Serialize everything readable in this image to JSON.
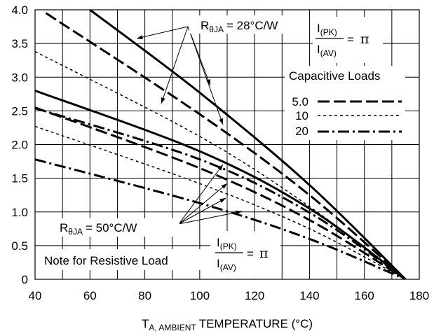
{
  "chart_data": {
    "type": "line",
    "title": "",
    "xlabel": {
      "main": "T",
      "subscript": "A, AMBIENT",
      "rest": "TEMPERATURE (°C)"
    },
    "ylabel": "",
    "xlim": [
      40,
      180
    ],
    "ylim": [
      0,
      4.0
    ],
    "x_ticks": [
      "40",
      "60",
      "80",
      "100",
      "120",
      "140",
      "160",
      "180"
    ],
    "y_ticks": [
      "0",
      "0.5",
      "1.0",
      "1.5",
      "2.0",
      "2.5",
      "3.0",
      "3.5",
      "4.0"
    ],
    "grid": true,
    "legend": {
      "title": "Capacitive Loads",
      "placement": "right",
      "entries": [
        {
          "label": "5.0",
          "style": "dash"
        },
        {
          "label": "10",
          "style": "dot"
        },
        {
          "label": "20",
          "style": "dashdot"
        }
      ]
    },
    "annotations": {
      "rthja_28": {
        "prefix": "R",
        "subscript": "θJA",
        "value": "= 28°C/W"
      },
      "rthja_50": {
        "prefix": "R",
        "subscript": "θJA",
        "value": "= 50°C/W"
      },
      "ratio_top": {
        "numerator": "I",
        "numerator_sub": "(PK)",
        "denominator": "I",
        "denominator_sub": "(AV)",
        "equals": "=",
        "value": "π"
      },
      "ratio_bottom": {
        "numerator": "I",
        "numerator_sub": "(PK)",
        "denominator": "I",
        "denominator_sub": "(AV)",
        "equals": "=",
        "value": "π"
      },
      "note": "Note for Resistive Load"
    },
    "series": [
      {
        "group": "28C/W",
        "style": "solid",
        "x": [
          60,
          100,
          140,
          175
        ],
        "y": [
          4.0,
          2.77,
          1.4,
          0.0
        ]
      },
      {
        "group": "28C/W",
        "style": "dash",
        "x": [
          44,
          100,
          140,
          175
        ],
        "y": [
          3.95,
          2.45,
          1.25,
          0.0
        ]
      },
      {
        "group": "28C/W",
        "style": "dot",
        "x": [
          40,
          100,
          140,
          175
        ],
        "y": [
          3.38,
          2.12,
          1.08,
          0.0
        ]
      },
      {
        "group": "28C/W",
        "style": "dashdot",
        "x": [
          40,
          100,
          140,
          175
        ],
        "y": [
          2.54,
          1.78,
          0.99,
          0.0
        ]
      },
      {
        "group": "50C/W",
        "style": "solid",
        "x": [
          40,
          100,
          140,
          175
        ],
        "y": [
          2.8,
          1.9,
          1.05,
          0.0
        ]
      },
      {
        "group": "50C/W",
        "style": "dash",
        "x": [
          40,
          100,
          140,
          175
        ],
        "y": [
          2.55,
          1.65,
          0.88,
          0.0
        ]
      },
      {
        "group": "50C/W",
        "style": "dot",
        "x": [
          40,
          100,
          140,
          175
        ],
        "y": [
          2.27,
          1.42,
          0.75,
          0.0
        ]
      },
      {
        "group": "50C/W",
        "style": "dashdot",
        "x": [
          40,
          100,
          140,
          175
        ],
        "y": [
          1.78,
          1.13,
          0.6,
          0.0
        ]
      }
    ]
  }
}
